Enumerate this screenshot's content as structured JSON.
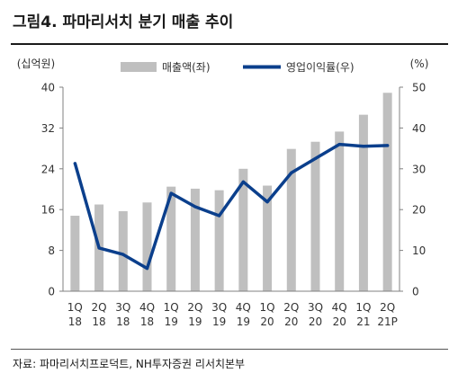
{
  "header": {
    "title": "그림4. 파마리서치 분기 매출 추이"
  },
  "footer": {
    "source": "자료: 파마리서치프로덕트, NH투자증권 리서치본부"
  },
  "colors": {
    "bar": "#bfbfbf",
    "line": "#0b3f8c",
    "text": "#333333",
    "axis": "#808080"
  },
  "chart_data": {
    "type": "bar+line",
    "categories": [
      "1Q 18",
      "2Q 18",
      "3Q 18",
      "4Q 18",
      "1Q 19",
      "2Q 19",
      "3Q 19",
      "4Q 19",
      "1Q 20",
      "2Q 20",
      "3Q 20",
      "4Q 20",
      "1Q 21",
      "2Q 21P"
    ],
    "left_axis": {
      "unit": "(십억원)",
      "ylim": [
        0,
        40
      ],
      "ticks": [
        "0",
        "8",
        "16",
        "24",
        "32",
        "40"
      ]
    },
    "right_axis": {
      "unit": "(%)",
      "ylim": [
        0,
        50
      ],
      "ticks": [
        "0",
        "10",
        "20",
        "30",
        "40",
        "50"
      ]
    },
    "legend": {
      "placement": "top",
      "items": [
        "매출액(좌)",
        "영업이익률(우)"
      ]
    },
    "series": [
      {
        "name": "매출액(좌)",
        "type": "bar",
        "axis": "left",
        "values": [
          14.8,
          17.0,
          15.7,
          17.4,
          20.5,
          20.1,
          19.8,
          24.0,
          20.7,
          27.9,
          29.3,
          31.3,
          34.6,
          38.9
        ]
      },
      {
        "name": "영업이익률(우)",
        "type": "line",
        "axis": "right",
        "values": [
          31.3,
          10.6,
          9.0,
          5.6,
          24.0,
          20.7,
          18.5,
          26.8,
          21.9,
          29.0,
          32.5,
          36.0,
          35.5,
          35.7
        ]
      }
    ],
    "grid": false
  }
}
